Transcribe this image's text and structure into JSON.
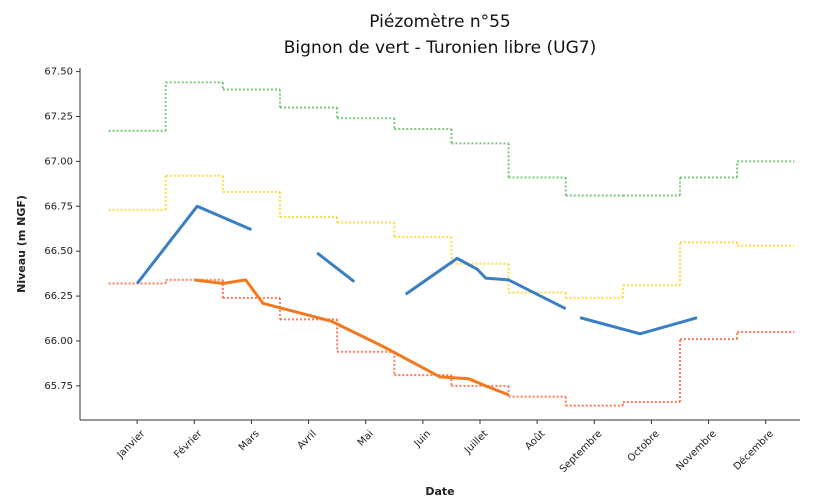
{
  "chart_data": {
    "type": "line",
    "title": "Piézomètre n°55",
    "subtitle": "Bignon de vert - Turonien libre (UG7)",
    "x_label": "Date",
    "y_label": "Niveau (m NGF)",
    "xlim": [
      0,
      12.6
    ],
    "xticks": [
      {
        "value": 1,
        "label": "Janvier"
      },
      {
        "value": 2,
        "label": "Février"
      },
      {
        "value": 3,
        "label": "Mars"
      },
      {
        "value": 4,
        "label": "Avril"
      },
      {
        "value": 5,
        "label": "Mai"
      },
      {
        "value": 6,
        "label": "Juin"
      },
      {
        "value": 7,
        "label": "Juillet"
      },
      {
        "value": 8,
        "label": "Août"
      },
      {
        "value": 9,
        "label": "Septembre"
      },
      {
        "value": 10,
        "label": "Octobre"
      },
      {
        "value": 11,
        "label": "Novembre"
      },
      {
        "value": 12,
        "label": "Décembre"
      }
    ],
    "ylim": [
      65.56,
      67.52
    ],
    "yticks": [
      65.75,
      {
        "value": 66.0,
        "label": "66.00"
      },
      66.25,
      {
        "value": 66.5,
        "label": "66.50"
      },
      66.75,
      {
        "value": 67.0,
        "label": "67.00"
      },
      67.25,
      {
        "value": 67.5,
        "label": "67.50"
      }
    ],
    "series": [
      {
        "style": "step",
        "color": "#5cb85c",
        "x": [
          1,
          2,
          3,
          4,
          5,
          6,
          7,
          8,
          9,
          10,
          11,
          12
        ],
        "values": [
          67.17,
          67.44,
          67.4,
          67.3,
          67.24,
          67.18,
          67.1,
          66.91,
          66.81,
          66.81,
          66.91,
          67.0
        ]
      },
      {
        "style": "step",
        "color": "#ffd11a",
        "x": [
          1,
          2,
          3,
          4,
          5,
          6,
          7,
          8,
          9,
          10,
          11,
          12
        ],
        "values": [
          66.73,
          66.92,
          66.83,
          66.69,
          66.66,
          66.58,
          66.43,
          66.27,
          66.24,
          66.31,
          66.55,
          66.53
        ]
      },
      {
        "style": "step",
        "color": "#ff5a36",
        "x": [
          1,
          2,
          3,
          4,
          5,
          6,
          7,
          8,
          9,
          10,
          11,
          12
        ],
        "values": [
          66.32,
          66.34,
          66.24,
          66.12,
          65.94,
          65.81,
          65.75,
          65.69,
          65.64,
          65.66,
          66.01,
          66.05
        ]
      },
      {
        "style": "line",
        "color": "#3a7fc4",
        "x": [
          1.0,
          2.05,
          3.0,
          null,
          4.15,
          4.8,
          null,
          5.7,
          6.6,
          6.95,
          7.1,
          7.5,
          8.5,
          null,
          8.75,
          9.8,
          10.8
        ],
        "values": [
          66.32,
          66.75,
          66.62,
          null,
          66.49,
          66.33,
          null,
          66.26,
          66.46,
          66.4,
          66.35,
          66.34,
          66.18,
          null,
          66.13,
          66.04,
          66.13
        ]
      },
      {
        "style": "line",
        "color": "#f07a20",
        "x": [
          2.0,
          2.5,
          2.9,
          3.2,
          4.4,
          5.3,
          6.3,
          6.8,
          7.1,
          7.5
        ],
        "values": [
          66.34,
          66.32,
          66.34,
          66.21,
          66.11,
          65.97,
          65.8,
          65.79,
          65.75,
          65.7
        ]
      }
    ]
  }
}
